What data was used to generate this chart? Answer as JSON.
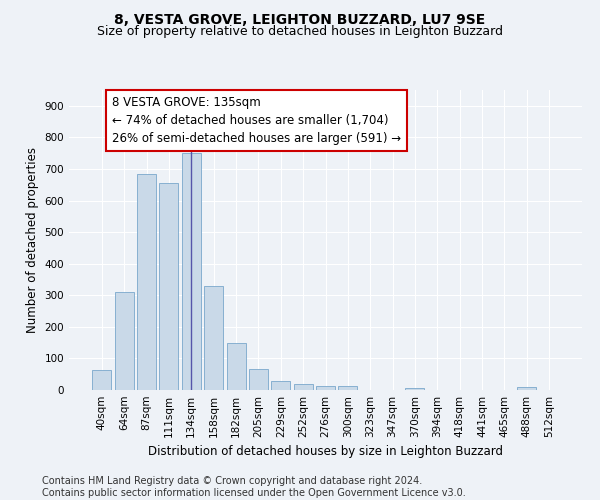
{
  "title": "8, VESTA GROVE, LEIGHTON BUZZARD, LU7 9SE",
  "subtitle": "Size of property relative to detached houses in Leighton Buzzard",
  "xlabel": "Distribution of detached houses by size in Leighton Buzzard",
  "ylabel": "Number of detached properties",
  "bar_labels": [
    "40sqm",
    "64sqm",
    "87sqm",
    "111sqm",
    "134sqm",
    "158sqm",
    "182sqm",
    "205sqm",
    "229sqm",
    "252sqm",
    "276sqm",
    "300sqm",
    "323sqm",
    "347sqm",
    "370sqm",
    "394sqm",
    "418sqm",
    "441sqm",
    "465sqm",
    "488sqm",
    "512sqm"
  ],
  "bar_values": [
    63,
    310,
    685,
    655,
    750,
    330,
    150,
    65,
    30,
    20,
    13,
    13,
    0,
    0,
    7,
    0,
    0,
    0,
    0,
    8,
    0
  ],
  "bar_color": "#c9d9e8",
  "bar_edge_color": "#7aa8cc",
  "vline_x": 4.0,
  "vline_color": "#5555aa",
  "annotation_box_text": "8 VESTA GROVE: 135sqm\n← 74% of detached houses are smaller (1,704)\n26% of semi-detached houses are larger (591) →",
  "box_color": "#cc0000",
  "ylim": [
    0,
    950
  ],
  "yticks": [
    0,
    100,
    200,
    300,
    400,
    500,
    600,
    700,
    800,
    900
  ],
  "footer_text": "Contains HM Land Registry data © Crown copyright and database right 2024.\nContains public sector information licensed under the Open Government Licence v3.0.",
  "bg_color": "#eef2f7",
  "plot_bg_color": "#eef2f7",
  "title_fontsize": 10,
  "subtitle_fontsize": 9,
  "xlabel_fontsize": 8.5,
  "ylabel_fontsize": 8.5,
  "tick_fontsize": 7.5,
  "annotation_fontsize": 8.5,
  "footer_fontsize": 7
}
